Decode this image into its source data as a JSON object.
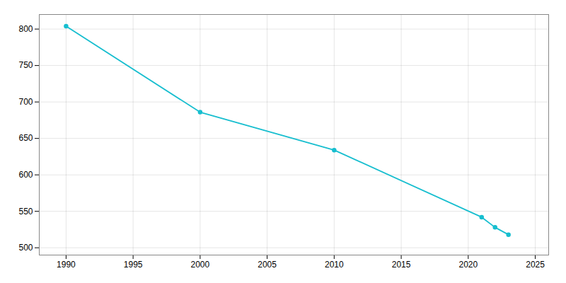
{
  "chart_data": {
    "type": "line",
    "x": [
      1990,
      2000,
      2010,
      2021,
      2022,
      2023
    ],
    "values": [
      804,
      686,
      634,
      542,
      528,
      518
    ],
    "color": "#17becf",
    "marker": "circle",
    "xlim": [
      1988,
      2026
    ],
    "ylim": [
      490,
      820
    ],
    "xticks": [
      1990,
      1995,
      2000,
      2005,
      2010,
      2015,
      2020,
      2025
    ],
    "yticks": [
      500,
      550,
      600,
      650,
      700,
      750,
      800
    ],
    "grid": true
  }
}
